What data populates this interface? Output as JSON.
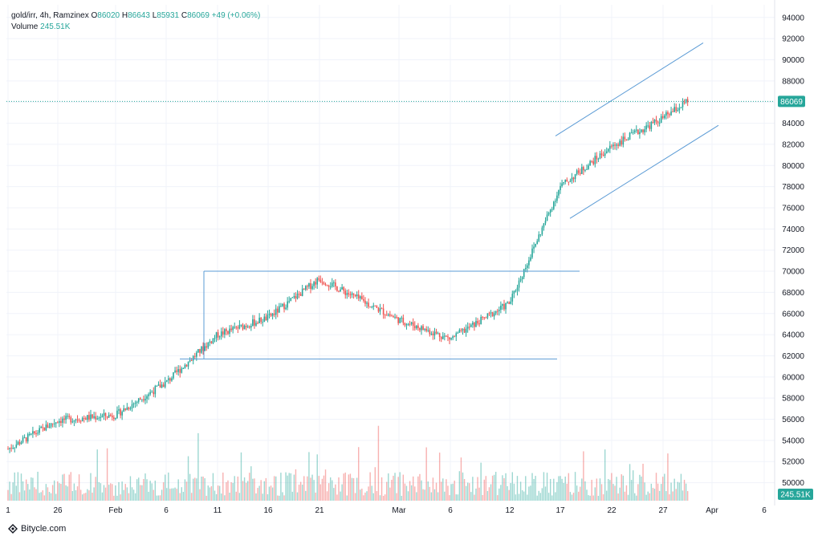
{
  "legend": {
    "symbol": "gold/irr, 4h, Ramzinex",
    "open_label": "O",
    "open": "86020",
    "high_label": "H",
    "high": "86643",
    "low_label": "L",
    "low": "85931",
    "close_label": "C",
    "close": "86069",
    "change": "+49 (+0.06%)",
    "volume_label": "Volume",
    "volume": "245.51K"
  },
  "brand": {
    "name": "Bitycle.com"
  },
  "colors": {
    "up": "#26a69a",
    "down": "#ef5350",
    "drawing": "#5b9bd5",
    "grid": "#f0f3fa"
  },
  "chart_data": {
    "type": "candlestick",
    "timeframe": "4h",
    "x_ticks": [
      "1",
      "26",
      "Feb",
      "6",
      "11",
      "16",
      "21",
      "Mar",
      "6",
      "12",
      "17",
      "22",
      "27",
      "Apr",
      "6"
    ],
    "y_ticks": [
      50000,
      52000,
      54000,
      56000,
      58000,
      60000,
      62000,
      64000,
      66000,
      68000,
      70000,
      72000,
      74000,
      76000,
      78000,
      80000,
      82000,
      84000,
      86000,
      88000,
      90000,
      92000,
      94000
    ],
    "ylim": [
      48300,
      95200
    ],
    "last_price": 86069,
    "last_volume": "245.51K",
    "price_path": [
      [
        "1",
        53200
      ],
      [
        "26",
        55900
      ],
      [
        "Feb",
        56400
      ],
      [
        "6",
        59500
      ],
      [
        "11",
        64000
      ],
      [
        "16",
        65600
      ],
      [
        "21",
        69300
      ],
      [
        "Mar",
        65400
      ],
      [
        "6",
        63600
      ],
      [
        "12",
        67000
      ],
      [
        "17",
        78000
      ],
      [
        "22",
        81800
      ],
      [
        "27",
        84500
      ],
      [
        "Apr",
        86069
      ]
    ],
    "annotations": [
      {
        "kind": "range-top",
        "price": 70000
      },
      {
        "kind": "range-bottom",
        "price": 61700
      },
      {
        "kind": "channel-upper",
        "from": 82800,
        "to": 91600
      },
      {
        "kind": "channel-lower",
        "from": 75000,
        "to": 83800
      }
    ]
  }
}
